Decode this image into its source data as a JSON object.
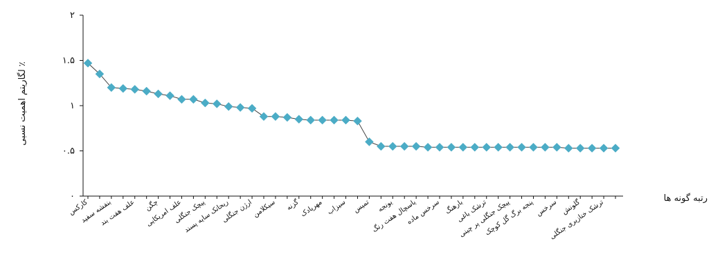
{
  "chart_data": {
    "type": "line",
    "xlabel": "رتبه گونه ها",
    "ylabel": "لگاریتم اهمیت نسبی ٪",
    "ylim": [
      0,
      2
    ],
    "yticks": [
      "۰",
      "۰.۵",
      "۱",
      "۱.۵",
      "۲"
    ],
    "ytick_values": [
      0,
      0.5,
      1,
      1.5,
      2
    ],
    "grid": false,
    "marker": "diamond",
    "colors": {
      "marker": "#4bacc6",
      "line": "#404040"
    },
    "x": [
      1,
      2,
      3,
      4,
      5,
      6,
      7,
      8,
      9,
      10,
      11,
      12,
      13,
      14,
      15,
      16,
      17,
      18,
      19,
      20,
      21,
      22,
      23,
      24,
      25,
      26,
      27,
      28,
      29,
      30,
      31,
      32,
      33,
      34,
      35,
      36,
      37,
      38,
      39,
      40,
      41,
      42,
      43,
      44,
      45,
      46
    ],
    "x_labels": [
      "کارکس",
      "بنفشه سفید",
      "علف هفت بند",
      "چگن",
      "علف امریکایی",
      "پیچک جنگلی",
      "ریحانک سایه پسند",
      "ارژن جنگلی",
      "سیکلامن",
      "گزنه",
      "مهرپادک",
      "سیزاب",
      "تمیس",
      "یونجه",
      "یاسچال هفت رنگ",
      "سرخس ماده",
      "بارهنگ",
      "ترشک باغی",
      "پیچک جنگلی پر چینی",
      "پنجه برگ گل کوچک",
      "سرخس",
      "گلونش",
      "ترشک خنازیری جنگلی"
    ],
    "label_every": 2,
    "values": [
      1.47,
      1.35,
      1.2,
      1.19,
      1.18,
      1.16,
      1.13,
      1.11,
      1.07,
      1.07,
      1.03,
      1.02,
      0.99,
      0.98,
      0.97,
      0.88,
      0.88,
      0.87,
      0.85,
      0.84,
      0.84,
      0.84,
      0.84,
      0.83,
      0.6,
      0.55,
      0.55,
      0.55,
      0.55,
      0.54,
      0.54,
      0.54,
      0.54,
      0.54,
      0.54,
      0.54,
      0.54,
      0.54,
      0.54,
      0.54,
      0.54,
      0.53,
      0.53,
      0.53,
      0.53,
      0.53
    ]
  }
}
